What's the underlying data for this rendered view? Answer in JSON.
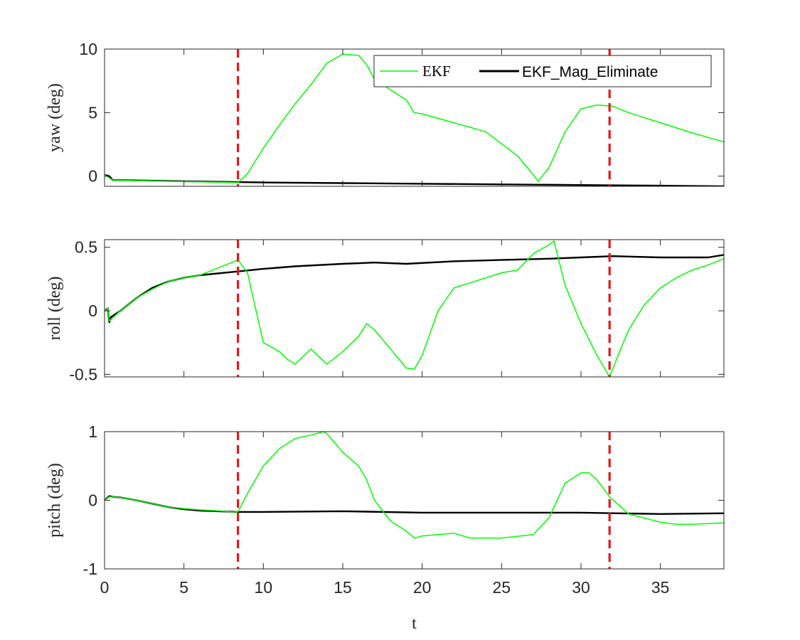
{
  "chart_data": {
    "type": "line",
    "xlabel": "t",
    "xlim": [
      0,
      39
    ],
    "xticks": [
      0,
      5,
      10,
      15,
      20,
      25,
      30,
      35
    ],
    "vlines": [
      8.4,
      31.8
    ],
    "colors": {
      "ekf": "#00ff00",
      "mag": "#000000",
      "vline": "#e8161b"
    },
    "legend": {
      "placement": "top-right",
      "entries": [
        "EKF",
        "EKF_Mag_Eliminate"
      ]
    },
    "panels": [
      {
        "name": "yaw",
        "ylabel": "yaw (deg)",
        "ylim": [
          -0.8,
          10
        ],
        "yticks": [
          0,
          5,
          10
        ],
        "series": [
          {
            "name": "EKF",
            "x": [
              0,
              0.5,
              2,
              4,
              6,
              8.4,
              9,
              10,
              11,
              12,
              13,
              14,
              15,
              16,
              16.5,
              17,
              18,
              19,
              19.5,
              20,
              22,
              24,
              26,
              27,
              27.3,
              28,
              29,
              30,
              31,
              32,
              33,
              35,
              37,
              39
            ],
            "y": [
              0.1,
              -0.3,
              -0.35,
              -0.4,
              -0.45,
              -0.5,
              0.2,
              2.2,
              4.0,
              5.7,
              7.2,
              8.9,
              9.6,
              9.5,
              8.8,
              7.6,
              6.8,
              6.0,
              5.0,
              4.9,
              4.2,
              3.5,
              1.6,
              0.1,
              -0.4,
              0.7,
              3.5,
              5.3,
              5.6,
              5.5,
              5.0,
              4.2,
              3.4,
              2.7
            ]
          },
          {
            "name": "EKF_Mag_Eliminate",
            "x": [
              0,
              0.3,
              0.5,
              5,
              10,
              15,
              20,
              25,
              30,
              35,
              39
            ],
            "y": [
              0.1,
              0.0,
              -0.3,
              -0.4,
              -0.5,
              -0.55,
              -0.6,
              -0.65,
              -0.7,
              -0.75,
              -0.8
            ]
          }
        ]
      },
      {
        "name": "roll",
        "ylabel": "roll (deg)",
        "ylim": [
          -0.52,
          0.56
        ],
        "yticks": [
          -0.5,
          0,
          0.5
        ],
        "series": [
          {
            "name": "EKF",
            "x": [
              0,
              0.2,
              0.3,
              1,
              2,
              3,
              4,
              5,
              6,
              7,
              8,
              8.4,
              9,
              10,
              11,
              11.5,
              12,
              13,
              14,
              15,
              16,
              16.5,
              17,
              18,
              19,
              19.5,
              20,
              21,
              22,
              23,
              25,
              26,
              27,
              28,
              28.3,
              29,
              30,
              31,
              31.8,
              32.5,
              33,
              34,
              35,
              36,
              37,
              38,
              39
            ],
            "y": [
              0.0,
              0.02,
              -0.08,
              0.0,
              0.1,
              0.17,
              0.23,
              0.26,
              0.28,
              0.33,
              0.38,
              0.4,
              0.3,
              -0.25,
              -0.32,
              -0.38,
              -0.42,
              -0.3,
              -0.42,
              -0.32,
              -0.2,
              -0.1,
              -0.15,
              -0.3,
              -0.45,
              -0.46,
              -0.35,
              0.0,
              0.18,
              0.22,
              0.3,
              0.32,
              0.45,
              0.52,
              0.55,
              0.2,
              -0.1,
              -0.35,
              -0.52,
              -0.3,
              -0.15,
              0.05,
              0.18,
              0.26,
              0.32,
              0.36,
              0.41
            ]
          },
          {
            "name": "EKF_Mag_Eliminate",
            "x": [
              0,
              0.2,
              0.3,
              0.4,
              1,
              2,
              3,
              4,
              5,
              6,
              8.4,
              10,
              12,
              15,
              17,
              19,
              22,
              25,
              28,
              30,
              32,
              35,
              38,
              39
            ],
            "y": [
              0.0,
              0.02,
              -0.09,
              -0.05,
              0.0,
              0.1,
              0.18,
              0.23,
              0.26,
              0.28,
              0.31,
              0.33,
              0.35,
              0.37,
              0.38,
              0.37,
              0.39,
              0.4,
              0.41,
              0.42,
              0.43,
              0.42,
              0.42,
              0.44
            ]
          }
        ]
      },
      {
        "name": "pitch",
        "ylabel": "pitch (deg)",
        "ylim": [
          -1,
          1
        ],
        "yticks": [
          -1,
          0,
          1
        ],
        "series": [
          {
            "name": "EKF",
            "x": [
              0,
              0.3,
              0.5,
              1,
              2,
              3,
              4,
              5,
              6,
              7,
              8,
              8.4,
              9,
              10,
              11,
              12,
              13,
              13.8,
              14,
              15,
              16,
              16.5,
              17,
              18,
              19,
              19.5,
              20,
              21,
              22,
              23,
              25,
              27,
              28,
              29,
              30,
              30.5,
              31,
              31.8,
              33,
              35,
              36,
              37,
              39
            ],
            "y": [
              0.0,
              0.05,
              0.05,
              0.04,
              0.0,
              -0.05,
              -0.1,
              -0.12,
              -0.14,
              -0.15,
              -0.17,
              -0.17,
              0.1,
              0.5,
              0.75,
              0.9,
              0.95,
              1.0,
              0.97,
              0.7,
              0.5,
              0.3,
              0.0,
              -0.3,
              -0.45,
              -0.55,
              -0.52,
              -0.5,
              -0.48,
              -0.55,
              -0.55,
              -0.5,
              -0.25,
              0.25,
              0.4,
              0.4,
              0.3,
              0.05,
              -0.2,
              -0.32,
              -0.35,
              -0.35,
              -0.33
            ]
          },
          {
            "name": "EKF_Mag_Eliminate",
            "x": [
              0,
              0.3,
              0.5,
              1,
              2,
              3,
              4,
              5,
              6,
              8.4,
              10,
              15,
              20,
              25,
              30,
              35,
              39
            ],
            "y": [
              0.0,
              0.06,
              0.05,
              0.04,
              0.0,
              -0.05,
              -0.1,
              -0.13,
              -0.15,
              -0.17,
              -0.17,
              -0.16,
              -0.18,
              -0.18,
              -0.18,
              -0.2,
              -0.19
            ]
          }
        ]
      }
    ]
  }
}
